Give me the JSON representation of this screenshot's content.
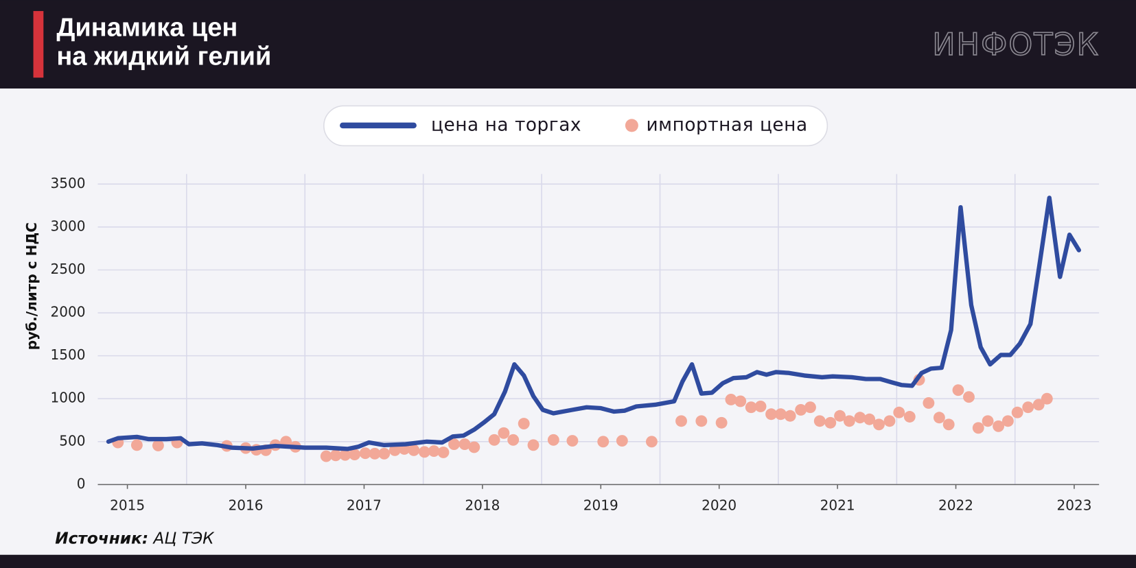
{
  "chart_data": {
    "type": "line",
    "title": [
      "Динамика цен",
      "на жидкий гелий"
    ],
    "brand": "ИНФОТЭК",
    "y_label": "руб./литр с НДС",
    "source_label": "Источник:",
    "source": "АЦ ТЭК",
    "xlim": [
      2015.25,
      2023.71
    ],
    "xticks": [
      {
        "value": 2015.5,
        "label": "2015"
      },
      {
        "value": 2016.5,
        "label": "2016"
      },
      {
        "value": 2017.5,
        "label": "2017"
      },
      {
        "value": 2018.5,
        "label": "2018"
      },
      {
        "value": 2019.5,
        "label": "2019"
      },
      {
        "value": 2020.5,
        "label": "2020"
      },
      {
        "value": 2021.5,
        "label": "2021"
      },
      {
        "value": 2022.5,
        "label": "2022"
      },
      {
        "value": 2023.5,
        "label": "2023"
      }
    ],
    "x_gridlines": [
      2016,
      2017,
      2018,
      2019,
      2020,
      2021,
      2022,
      2023
    ],
    "ylim": [
      0,
      3500
    ],
    "yticks": [
      0,
      500,
      1000,
      1500,
      2000,
      2500,
      3000,
      3500
    ],
    "grid": true,
    "legend": "top",
    "series": [
      {
        "name": "цена на торгах",
        "color": "#2f4b9f",
        "kind": "line",
        "x": [
          2015.34,
          2015.42,
          2015.58,
          2015.68,
          2015.83,
          2015.95,
          2016.02,
          2016.13,
          2016.26,
          2016.38,
          2016.56,
          2016.75,
          2017.0,
          2017.18,
          2017.36,
          2017.45,
          2017.54,
          2017.67,
          2017.85,
          2018.03,
          2018.16,
          2018.25,
          2018.34,
          2018.43,
          2018.51,
          2018.6,
          2018.69,
          2018.77,
          2018.85,
          2018.93,
          2019.01,
          2019.1,
          2019.26,
          2019.38,
          2019.5,
          2019.61,
          2019.7,
          2019.8,
          2019.96,
          2020.12,
          2020.19,
          2020.27,
          2020.35,
          2020.44,
          2020.53,
          2020.62,
          2020.73,
          2020.82,
          2020.9,
          2020.98,
          2021.09,
          2021.22,
          2021.37,
          2021.46,
          2021.62,
          2021.74,
          2021.86,
          2021.96,
          2022.04,
          2022.13,
          2022.21,
          2022.29,
          2022.38,
          2022.46,
          2022.54,
          2022.63,
          2022.71,
          2022.79,
          2022.88,
          2022.96,
          2023.04,
          2023.13,
          2023.21,
          2023.29,
          2023.38,
          2023.46,
          2023.54
        ],
        "values": [
          500,
          540,
          555,
          530,
          530,
          540,
          470,
          480,
          460,
          430,
          420,
          450,
          430,
          430,
          415,
          440,
          490,
          460,
          470,
          500,
          490,
          560,
          570,
          640,
          720,
          820,
          1080,
          1400,
          1270,
          1030,
          870,
          830,
          870,
          900,
          890,
          850,
          860,
          910,
          930,
          970,
          1200,
          1400,
          1060,
          1070,
          1180,
          1240,
          1250,
          1310,
          1280,
          1310,
          1300,
          1270,
          1250,
          1260,
          1250,
          1230,
          1230,
          1190,
          1160,
          1150,
          1300,
          1350,
          1360,
          1800,
          3230,
          2090,
          1600,
          1400,
          1510,
          1510,
          1640,
          1870,
          2590,
          3340,
          2420,
          2910,
          2730
        ]
      },
      {
        "name": "импортная цена",
        "color": "#f2a898",
        "kind": "scatter",
        "x": [
          2015.42,
          2015.58,
          2015.76,
          2015.92,
          2016.34,
          2016.5,
          2016.59,
          2016.67,
          2016.75,
          2016.84,
          2016.92,
          2017.18,
          2017.26,
          2017.34,
          2017.42,
          2017.51,
          2017.59,
          2017.67,
          2017.76,
          2017.84,
          2017.92,
          2018.01,
          2018.09,
          2018.17,
          2018.26,
          2018.35,
          2018.43,
          2018.6,
          2018.68,
          2018.76,
          2018.85,
          2018.93,
          2019.1,
          2019.26,
          2019.52,
          2019.68,
          2019.93,
          2020.18,
          2020.35,
          2020.52,
          2020.6,
          2020.68,
          2020.77,
          2020.85,
          2020.94,
          2021.02,
          2021.1,
          2021.19,
          2021.27,
          2021.35,
          2021.44,
          2021.52,
          2021.6,
          2021.69,
          2021.77,
          2021.85,
          2021.94,
          2022.02,
          2022.11,
          2022.19,
          2022.27,
          2022.36,
          2022.44,
          2022.52,
          2022.61,
          2022.69,
          2022.77,
          2022.86,
          2022.94,
          2023.02,
          2023.11,
          2023.2,
          2023.27
        ],
        "values": [
          490,
          460,
          455,
          490,
          450,
          425,
          405,
          400,
          460,
          500,
          440,
          330,
          340,
          345,
          350,
          365,
          360,
          360,
          400,
          415,
          400,
          380,
          390,
          375,
          470,
          470,
          435,
          520,
          600,
          520,
          710,
          460,
          520,
          510,
          500,
          510,
          500,
          740,
          740,
          720,
          990,
          970,
          900,
          910,
          820,
          820,
          800,
          870,
          900,
          740,
          720,
          800,
          740,
          780,
          760,
          700,
          740,
          840,
          790,
          1220,
          950,
          780,
          700,
          1100,
          1020,
          660,
          740,
          680,
          740,
          840,
          900,
          930,
          1000
        ]
      }
    ]
  }
}
